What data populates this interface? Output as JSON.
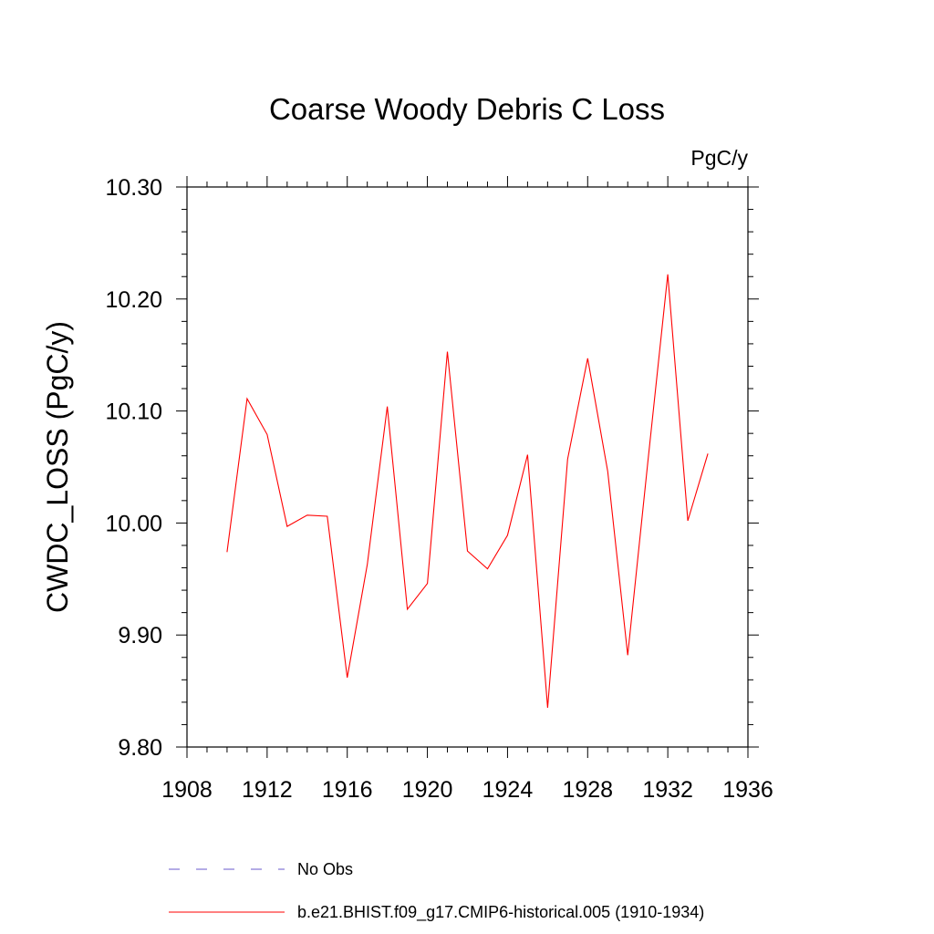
{
  "chart_data": {
    "type": "line",
    "title": "Coarse Woody Debris C Loss",
    "units": "PgC/y",
    "xlabel": "",
    "ylabel": "CWDC_LOSS  (PgC/y)",
    "xlim": [
      1908,
      1936
    ],
    "ylim": [
      9.8,
      10.3
    ],
    "x_ticks": [
      1908,
      1912,
      1916,
      1920,
      1924,
      1928,
      1932,
      1936
    ],
    "y_ticks": [
      "9.80",
      "9.90",
      "10.00",
      "10.10",
      "10.20",
      "10.30"
    ],
    "grid": false,
    "legend_position": "bottom",
    "legend": [
      {
        "label": "No Obs",
        "color": "#6a5acd",
        "style": "dashed"
      },
      {
        "label": "b.e21.BHIST.f09_g17.CMIP6-historical.005 (1910-1934)",
        "color": "#ff0000",
        "style": "solid"
      }
    ],
    "series": [
      {
        "name": "b.e21.BHIST.f09_g17.CMIP6-historical.005 (1910-1934)",
        "color": "#ff0000",
        "x": [
          1910,
          1911,
          1912,
          1913,
          1914,
          1915,
          1916,
          1917,
          1918,
          1919,
          1920,
          1921,
          1922,
          1923,
          1924,
          1925,
          1926,
          1927,
          1928,
          1929,
          1930,
          1931,
          1932,
          1933,
          1934
        ],
        "y": [
          9.974,
          10.111,
          10.079,
          9.997,
          10.007,
          10.006,
          9.862,
          9.963,
          10.104,
          9.923,
          9.946,
          10.153,
          9.975,
          9.959,
          9.989,
          10.061,
          9.835,
          10.057,
          10.147,
          10.046,
          9.882,
          10.054,
          10.222,
          10.002,
          10.062
        ]
      }
    ]
  }
}
